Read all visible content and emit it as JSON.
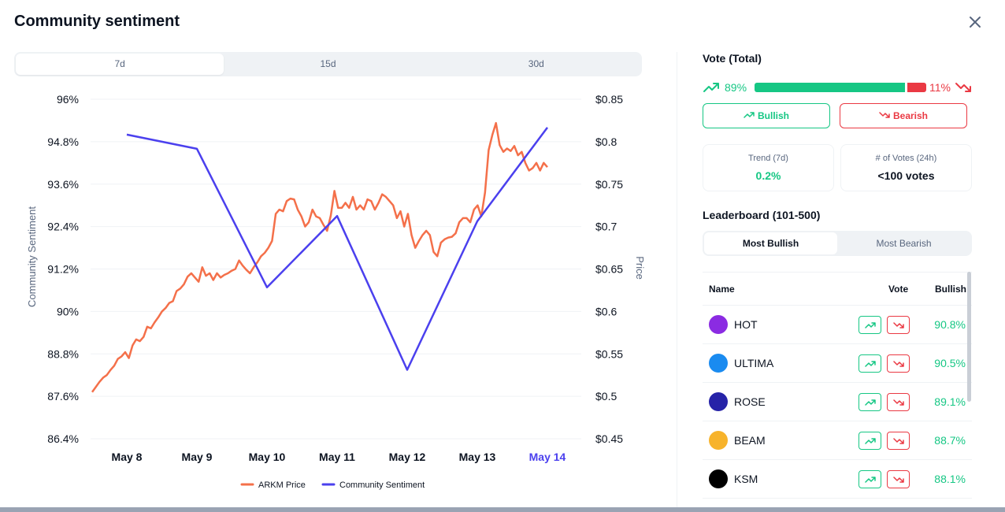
{
  "modal": {
    "title": "Community sentiment"
  },
  "period_tabs": [
    {
      "label": "7d",
      "active": true
    },
    {
      "label": "15d",
      "active": false
    },
    {
      "label": "30d",
      "active": false
    }
  ],
  "chart_data": {
    "type": "line",
    "x_labels": [
      "May 8",
      "May 9",
      "May 10",
      "May 11",
      "May 12",
      "May 13",
      "May 14"
    ],
    "highlight_label": "May 14",
    "left_axis": {
      "label": "Community Sentiment",
      "ticks": [
        "96%",
        "94.8%",
        "93.6%",
        "92.4%",
        "91.2%",
        "90%",
        "88.8%",
        "87.6%",
        "86.4%"
      ],
      "range": [
        86.4,
        96
      ]
    },
    "right_axis": {
      "label": "Price",
      "ticks": [
        "$0.85",
        "$0.8",
        "$0.75",
        "$0.7",
        "$0.65",
        "$0.6",
        "$0.55",
        "$0.5",
        "$0.45"
      ],
      "range": [
        0.45,
        0.85
      ]
    },
    "series": [
      {
        "name": "ARKM Price",
        "color": "#f4704a",
        "axis": "right",
        "x": [
          0,
          0.05,
          0.1,
          0.15,
          0.2,
          0.25,
          0.3,
          0.35,
          0.4,
          0.45,
          0.5,
          0.55,
          0.6,
          0.65,
          0.7,
          0.75,
          0.8,
          0.85,
          0.9,
          0.95,
          1.0,
          1.05,
          1.1,
          1.15,
          1.2,
          1.25,
          1.3,
          1.35,
          1.4,
          1.45,
          1.5,
          1.55,
          1.6,
          1.65,
          1.7,
          1.75,
          1.8,
          1.85,
          1.9,
          1.95,
          2.0,
          2.05,
          2.1,
          2.15,
          2.2,
          2.25,
          2.3,
          2.35,
          2.4,
          2.45,
          2.5,
          2.55,
          2.6,
          2.65,
          2.7,
          2.75,
          2.8,
          2.85,
          2.9,
          2.95,
          3.0,
          3.05,
          3.1,
          3.15,
          3.2,
          3.25,
          3.3,
          3.35,
          3.4,
          3.45,
          3.5,
          3.55,
          3.6,
          3.65,
          3.7,
          3.75,
          3.8,
          3.85,
          3.9,
          3.95,
          4.0,
          4.05,
          4.1,
          4.15,
          4.2,
          4.25,
          4.3,
          4.35,
          4.4,
          4.45,
          4.5,
          4.55,
          4.6,
          4.65,
          4.7,
          4.75,
          4.8,
          4.85,
          4.9,
          4.95,
          5.0,
          5.05,
          5.1,
          5.15,
          5.2,
          5.25,
          5.3,
          5.35,
          5.4,
          5.45,
          5.5,
          5.55,
          5.6,
          5.65,
          5.7,
          5.75,
          5.8,
          5.85,
          5.9,
          5.95,
          6.0,
          6.05,
          6.1,
          6.15,
          6.2
        ],
        "y": [
          0.505,
          0.511,
          0.517,
          0.522,
          0.525,
          0.531,
          0.536,
          0.544,
          0.547,
          0.552,
          0.545,
          0.56,
          0.567,
          0.565,
          0.57,
          0.582,
          0.58,
          0.587,
          0.593,
          0.6,
          0.604,
          0.61,
          0.612,
          0.624,
          0.627,
          0.632,
          0.641,
          0.645,
          0.64,
          0.635,
          0.652,
          0.642,
          0.645,
          0.637,
          0.645,
          0.64,
          0.643,
          0.645,
          0.648,
          0.65,
          0.66,
          0.654,
          0.649,
          0.645,
          0.652,
          0.658,
          0.665,
          0.669,
          0.675,
          0.683,
          0.715,
          0.72,
          0.718,
          0.73,
          0.733,
          0.732,
          0.72,
          0.712,
          0.7,
          0.705,
          0.72,
          0.712,
          0.71,
          0.702,
          0.695,
          0.713,
          0.742,
          0.722,
          0.722,
          0.728,
          0.722,
          0.735,
          0.72,
          0.725,
          0.72,
          0.732,
          0.73,
          0.72,
          0.728,
          0.738,
          0.735,
          0.73,
          0.725,
          0.71,
          0.718,
          0.7,
          0.715,
          0.69,
          0.675,
          0.683,
          0.69,
          0.695,
          0.69,
          0.67,
          0.665,
          0.681,
          0.685,
          0.687,
          0.688,
          0.692,
          0.705,
          0.71,
          0.71,
          0.705,
          0.72,
          0.725,
          0.712,
          0.74,
          0.79,
          0.808,
          0.822,
          0.796,
          0.788,
          0.792,
          0.789,
          0.795,
          0.784,
          0.788,
          0.775,
          0.766,
          0.769,
          0.775,
          0.766,
          0.775,
          0.77
        ],
        "y_range": [
          0.5,
          0.83
        ]
      },
      {
        "name": "Community Sentiment",
        "color": "#4b40ee",
        "axis": "left",
        "x": [
          0,
          1,
          2,
          3,
          4,
          5,
          6
        ],
        "y": [
          95.0,
          94.6,
          90.68,
          92.7,
          88.35,
          92.55,
          95.2
        ]
      }
    ]
  },
  "vote": {
    "title": "Vote (Total)",
    "bullish_pct": "89%",
    "bearish_pct": "11%",
    "bullish_share": 0.89,
    "bullish_button": "Bullish",
    "bearish_button": "Bearish"
  },
  "stats": {
    "trend_label": "Trend (7d)",
    "trend_value": "0.2%",
    "votes_label": "# of Votes (24h)",
    "votes_value": "<100 votes"
  },
  "leaderboard": {
    "title": "Leaderboard (101-500)",
    "tabs": [
      {
        "label": "Most Bullish",
        "active": true
      },
      {
        "label": "Most Bearish",
        "active": false
      }
    ],
    "columns": {
      "name": "Name",
      "vote": "Vote",
      "bullish": "Bullish"
    },
    "rows": [
      {
        "name": "HOT",
        "bullish": "90.8%",
        "icon": "hot-coin-icon",
        "color": "#8b2be2"
      },
      {
        "name": "ULTIMA",
        "bullish": "90.5%",
        "icon": "ultima-coin-icon",
        "color": "#1a8bf0"
      },
      {
        "name": "ROSE",
        "bullish": "89.1%",
        "icon": "rose-coin-icon",
        "color": "#2623a8"
      },
      {
        "name": "BEAM",
        "bullish": "88.7%",
        "icon": "beam-coin-icon",
        "color": "#f7b32b"
      },
      {
        "name": "KSM",
        "bullish": "88.1%",
        "icon": "ksm-coin-icon",
        "color": "#000000"
      }
    ]
  }
}
